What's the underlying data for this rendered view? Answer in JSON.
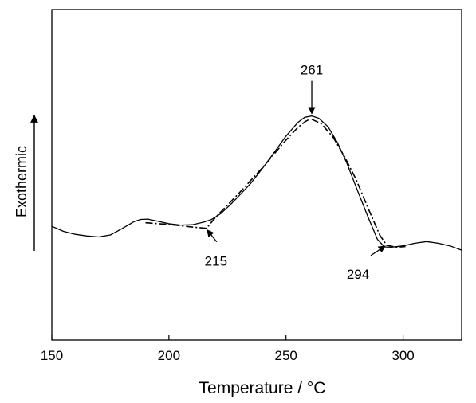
{
  "chart_data": {
    "type": "line",
    "title": "",
    "xlabel": "Temperature / °C",
    "ylabel": "Exothermic",
    "xlim": [
      150,
      325
    ],
    "xticks": [
      150,
      200,
      250,
      300
    ],
    "y_ticks_shown": false,
    "grid": false,
    "y_scale": "arbitrary (heat flow, 0 = bottom of frame, 1 = top of frame)",
    "series": [
      {
        "style": "solid",
        "points": [
          [
            150,
            0.344
          ],
          [
            155,
            0.329
          ],
          [
            160,
            0.32
          ],
          [
            165,
            0.315
          ],
          [
            170,
            0.312
          ],
          [
            175,
            0.318
          ],
          [
            180,
            0.337
          ],
          [
            185,
            0.358
          ],
          [
            188,
            0.365
          ],
          [
            191,
            0.366
          ],
          [
            195,
            0.36
          ],
          [
            200,
            0.352
          ],
          [
            205,
            0.348
          ],
          [
            210,
            0.349
          ],
          [
            215,
            0.357
          ],
          [
            218,
            0.364
          ],
          [
            222,
            0.382
          ],
          [
            226,
            0.408
          ],
          [
            230,
            0.437
          ],
          [
            235,
            0.475
          ],
          [
            240,
            0.52
          ],
          [
            245,
            0.568
          ],
          [
            250,
            0.617
          ],
          [
            255,
            0.658
          ],
          [
            258,
            0.674
          ],
          [
            261,
            0.678
          ],
          [
            264,
            0.671
          ],
          [
            268,
            0.645
          ],
          [
            272,
            0.597
          ],
          [
            276,
            0.535
          ],
          [
            280,
            0.462
          ],
          [
            285,
            0.373
          ],
          [
            289,
            0.305
          ],
          [
            292,
            0.282
          ],
          [
            295,
            0.281
          ],
          [
            300,
            0.285
          ],
          [
            305,
            0.293
          ],
          [
            310,
            0.298
          ],
          [
            315,
            0.293
          ],
          [
            320,
            0.285
          ],
          [
            325,
            0.272
          ]
        ]
      },
      {
        "style": "dash-dot",
        "points": [
          [
            190,
            0.355
          ],
          [
            200,
            0.35
          ],
          [
            210,
            0.342
          ],
          [
            216,
            0.338
          ],
          [
            220,
            0.372
          ],
          [
            230,
            0.445
          ],
          [
            240,
            0.522
          ],
          [
            250,
            0.605
          ],
          [
            255,
            0.643
          ],
          [
            258,
            0.66
          ],
          [
            260,
            0.668
          ]
        ]
      },
      {
        "style": "dash-dot",
        "points": [
          [
            261,
            0.668
          ],
          [
            265,
            0.655
          ],
          [
            270,
            0.615
          ],
          [
            275,
            0.555
          ],
          [
            280,
            0.485
          ],
          [
            285,
            0.4
          ],
          [
            290,
            0.318
          ],
          [
            293,
            0.287
          ],
          [
            297,
            0.281
          ],
          [
            301,
            0.283
          ]
        ]
      }
    ],
    "annotations": [
      {
        "text": "261",
        "x": 261,
        "y": 0.678,
        "arrow": "down"
      },
      {
        "text": "215",
        "x": 216,
        "y": 0.338,
        "arrow": "up-left"
      },
      {
        "text": "294",
        "x": 293,
        "y": 0.287,
        "arrow": "up-right"
      }
    ],
    "exothermic_arrow": "up"
  }
}
